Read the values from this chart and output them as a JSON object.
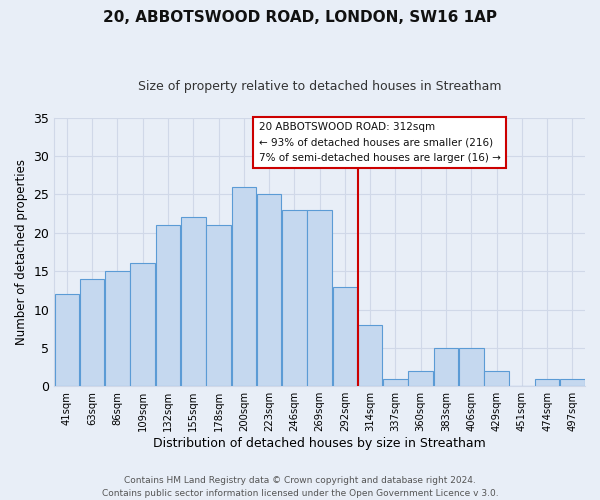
{
  "title": "20, ABBOTSWOOD ROAD, LONDON, SW16 1AP",
  "subtitle": "Size of property relative to detached houses in Streatham",
  "xlabel": "Distribution of detached houses by size in Streatham",
  "ylabel": "Number of detached properties",
  "footer_lines": [
    "Contains HM Land Registry data © Crown copyright and database right 2024.",
    "Contains public sector information licensed under the Open Government Licence v 3.0."
  ],
  "bin_labels": [
    "41sqm",
    "63sqm",
    "86sqm",
    "109sqm",
    "132sqm",
    "155sqm",
    "178sqm",
    "200sqm",
    "223sqm",
    "246sqm",
    "269sqm",
    "292sqm",
    "314sqm",
    "337sqm",
    "360sqm",
    "383sqm",
    "406sqm",
    "429sqm",
    "451sqm",
    "474sqm",
    "497sqm"
  ],
  "bar_heights": [
    12,
    14,
    15,
    16,
    21,
    22,
    21,
    26,
    25,
    23,
    23,
    13,
    8,
    1,
    2,
    5,
    5,
    2,
    0,
    1,
    1
  ],
  "bar_color": "#c5d8ef",
  "bar_edge_color": "#5b9bd5",
  "marker_line_index": 12,
  "marker_line_color": "#cc0000",
  "ylim": [
    0,
    35
  ],
  "yticks": [
    0,
    5,
    10,
    15,
    20,
    25,
    30,
    35
  ],
  "annotation_title": "20 ABBOTSWOOD ROAD: 312sqm",
  "annotation_line1": "← 93% of detached houses are smaller (216)",
  "annotation_line2": "7% of semi-detached houses are larger (16) →",
  "annotation_box_color": "#ffffff",
  "annotation_border_color": "#cc0000",
  "grid_color": "#d0d8e8",
  "background_color": "#e8eef7",
  "plot_bg_color": "#e8eef7"
}
